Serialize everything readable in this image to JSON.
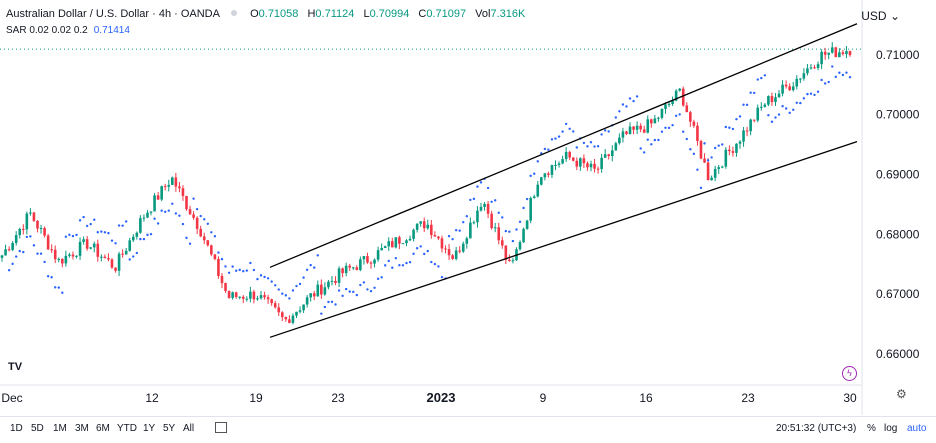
{
  "header": {
    "title": "Australian Dollar / U.S. Dollar · 4h · OANDA",
    "ohlc": [
      {
        "label": "O",
        "value": "0.71058"
      },
      {
        "label": "H",
        "value": "0.71124"
      },
      {
        "label": "L",
        "value": "0.70994"
      },
      {
        "label": "C",
        "value": "0.71097"
      },
      {
        "label": "Vol",
        "value": "7.316K"
      }
    ],
    "sar_label": "SAR 0.02 0.02 0.2",
    "sar_value": "0.71414",
    "currency": "USD"
  },
  "chart_data": {
    "type": "candlestick",
    "symbol": "AUDUSD",
    "interval": "4h",
    "y_ticks": [
      "0.71000",
      "0.70000",
      "0.69000",
      "0.68000",
      "0.67000",
      "0.66000"
    ],
    "ylim": [
      0.6555,
      0.7165
    ],
    "x_ticks": [
      "Dec",
      "12",
      "19",
      "23",
      "2023",
      "9",
      "16",
      "23",
      "30"
    ],
    "last_price": 0.71097,
    "candles_close_path": [
      {
        "x": "Dec",
        "close": 0.6765
      },
      {
        "x": "5",
        "close": 0.6835
      },
      {
        "x": "7",
        "close": 0.6755
      },
      {
        "x": "9",
        "close": 0.6785
      },
      {
        "x": "12",
        "close": 0.6745
      },
      {
        "x": "14",
        "close": 0.683
      },
      {
        "x": "15",
        "close": 0.6895
      },
      {
        "x": "16",
        "close": 0.681
      },
      {
        "x": "18",
        "close": 0.6695
      },
      {
        "x": "19",
        "close": 0.67
      },
      {
        "x": "20",
        "close": 0.6655
      },
      {
        "x": "22",
        "close": 0.67
      },
      {
        "x": "23",
        "close": 0.6735
      },
      {
        "x": "27",
        "close": 0.676
      },
      {
        "x": "29",
        "close": 0.679
      },
      {
        "x": "2023",
        "close": 0.682
      },
      {
        "x": "4",
        "close": 0.676
      },
      {
        "x": "5",
        "close": 0.686
      },
      {
        "x": "6",
        "close": 0.674
      },
      {
        "x": "9",
        "close": 0.69
      },
      {
        "x": "11",
        "close": 0.693
      },
      {
        "x": "13",
        "close": 0.6905
      },
      {
        "x": "16",
        "close": 0.6965
      },
      {
        "x": "18",
        "close": 0.6985
      },
      {
        "x": "19",
        "close": 0.704
      },
      {
        "x": "20",
        "close": 0.6895
      },
      {
        "x": "23",
        "close": 0.6955
      },
      {
        "x": "25",
        "close": 0.702
      },
      {
        "x": "26",
        "close": 0.7055
      },
      {
        "x": "27",
        "close": 0.71
      },
      {
        "x": "30",
        "close": 0.711
      }
    ],
    "trend_channel": {
      "upper": [
        {
          "x": "20",
          "y": 0.6745
        },
        {
          "x": "30",
          "y": 0.7152
        }
      ],
      "lower": [
        {
          "x": "20",
          "y": 0.6628
        },
        {
          "x": "30",
          "y": 0.6955
        }
      ]
    }
  },
  "toolbar": {
    "timeframes": [
      "1D",
      "5D",
      "1M",
      "3M",
      "6M",
      "YTD",
      "1Y",
      "5Y",
      "All"
    ],
    "time": "20:51:32 (UTC+3)",
    "percent": "%",
    "log": "log",
    "auto": "auto"
  },
  "colors": {
    "up": "#089981",
    "down": "#f23645",
    "sar": "#2962ff",
    "line": "#000000",
    "grid": "#f0f3fa"
  },
  "icons": [
    "tradingview-logo-icon",
    "calendar-icon",
    "settings-gear-icon",
    "lightning-icon",
    "chevron-down-icon"
  ]
}
